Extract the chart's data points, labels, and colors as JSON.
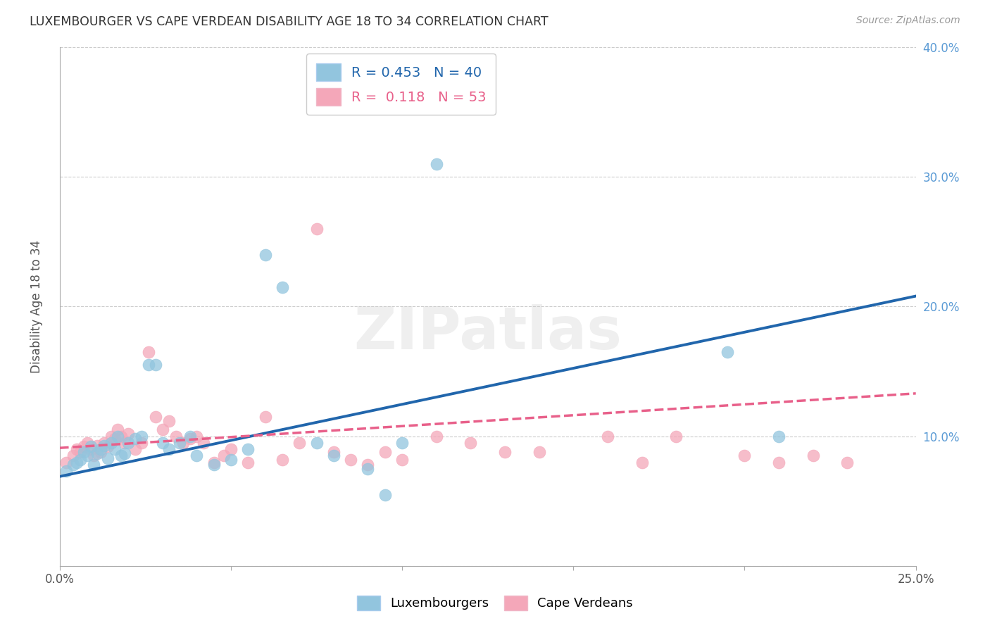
{
  "title": "LUXEMBOURGER VS CAPE VERDEAN DISABILITY AGE 18 TO 34 CORRELATION CHART",
  "source": "Source: ZipAtlas.com",
  "ylabel": "Disability Age 18 to 34",
  "xlim": [
    0.0,
    0.25
  ],
  "ylim": [
    0.0,
    0.4
  ],
  "xtick_positions": [
    0.0,
    0.05,
    0.1,
    0.15,
    0.2,
    0.25
  ],
  "ytick_positions": [
    0.0,
    0.1,
    0.2,
    0.3,
    0.4
  ],
  "xticklabels": [
    "0.0%",
    "",
    "",
    "",
    "",
    "25.0%"
  ],
  "yticklabels_right": [
    "",
    "10.0%",
    "20.0%",
    "30.0%",
    "40.0%"
  ],
  "blue_color": "#92c5de",
  "pink_color": "#f4a7b9",
  "blue_line_color": "#2166ac",
  "pink_line_color": "#e8608a",
  "legend_blue_R": "0.453",
  "legend_blue_N": "40",
  "legend_pink_R": "0.118",
  "legend_pink_N": "53",
  "watermark": "ZIPatlas",
  "blue_scatter_x": [
    0.002,
    0.004,
    0.005,
    0.006,
    0.007,
    0.008,
    0.009,
    0.01,
    0.011,
    0.012,
    0.013,
    0.014,
    0.015,
    0.016,
    0.017,
    0.018,
    0.019,
    0.02,
    0.022,
    0.024,
    0.026,
    0.028,
    0.03,
    0.032,
    0.035,
    0.038,
    0.04,
    0.045,
    0.05,
    0.055,
    0.06,
    0.065,
    0.075,
    0.08,
    0.09,
    0.095,
    0.1,
    0.11,
    0.195,
    0.21
  ],
  "blue_scatter_y": [
    0.073,
    0.078,
    0.08,
    0.082,
    0.088,
    0.085,
    0.092,
    0.078,
    0.087,
    0.09,
    0.093,
    0.083,
    0.095,
    0.09,
    0.1,
    0.085,
    0.087,
    0.095,
    0.098,
    0.1,
    0.155,
    0.155,
    0.095,
    0.09,
    0.095,
    0.1,
    0.085,
    0.078,
    0.082,
    0.09,
    0.24,
    0.215,
    0.095,
    0.085,
    0.075,
    0.055,
    0.095,
    0.31,
    0.165,
    0.1
  ],
  "pink_scatter_x": [
    0.002,
    0.004,
    0.005,
    0.006,
    0.007,
    0.008,
    0.009,
    0.01,
    0.011,
    0.012,
    0.013,
    0.014,
    0.015,
    0.016,
    0.017,
    0.018,
    0.019,
    0.02,
    0.022,
    0.024,
    0.026,
    0.028,
    0.03,
    0.032,
    0.034,
    0.036,
    0.038,
    0.04,
    0.042,
    0.045,
    0.048,
    0.05,
    0.055,
    0.06,
    0.065,
    0.07,
    0.075,
    0.08,
    0.085,
    0.09,
    0.095,
    0.1,
    0.11,
    0.12,
    0.13,
    0.14,
    0.16,
    0.17,
    0.18,
    0.2,
    0.21,
    0.22,
    0.23
  ],
  "pink_scatter_y": [
    0.08,
    0.085,
    0.09,
    0.088,
    0.092,
    0.095,
    0.09,
    0.085,
    0.093,
    0.088,
    0.095,
    0.092,
    0.1,
    0.098,
    0.105,
    0.1,
    0.095,
    0.102,
    0.09,
    0.095,
    0.165,
    0.115,
    0.105,
    0.112,
    0.1,
    0.095,
    0.098,
    0.1,
    0.095,
    0.08,
    0.085,
    0.09,
    0.08,
    0.115,
    0.082,
    0.095,
    0.26,
    0.088,
    0.082,
    0.078,
    0.088,
    0.082,
    0.1,
    0.095,
    0.088,
    0.088,
    0.1,
    0.08,
    0.1,
    0.085,
    0.08,
    0.085,
    0.08
  ],
  "blue_line_x0": 0.0,
  "blue_line_y0": 0.069,
  "blue_line_x1": 0.25,
  "blue_line_y1": 0.208,
  "pink_line_x0": 0.0,
  "pink_line_y0": 0.091,
  "pink_line_x1": 0.25,
  "pink_line_y1": 0.133
}
